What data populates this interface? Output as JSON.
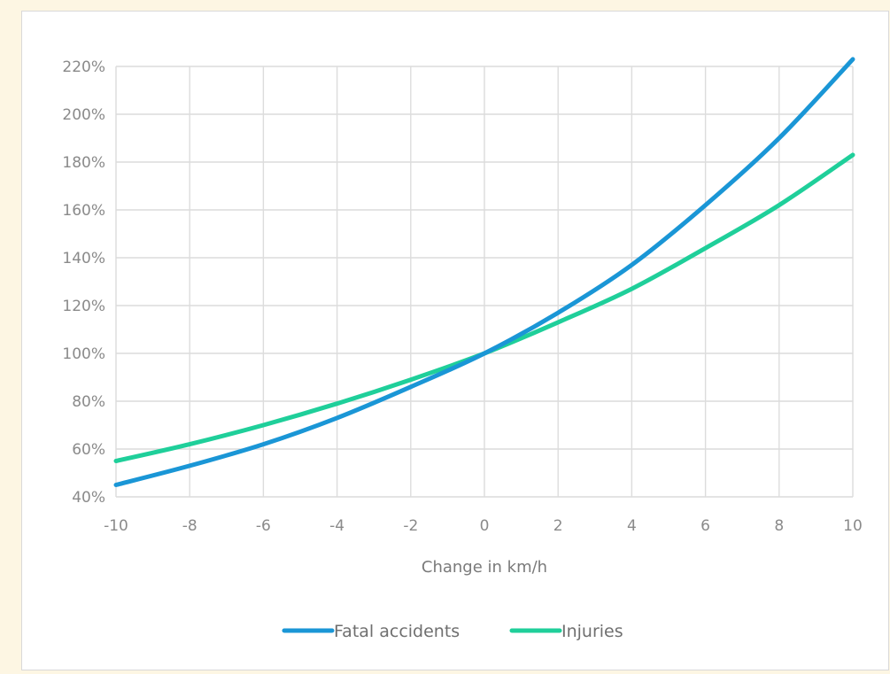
{
  "chart_data": {
    "type": "line",
    "title": "",
    "xlabel": "Change in km/h",
    "ylabel": "",
    "x": [
      -10,
      -8,
      -6,
      -4,
      -2,
      0,
      2,
      4,
      6,
      8,
      10
    ],
    "xlim": [
      -10,
      10
    ],
    "ylim": [
      40,
      220
    ],
    "x_ticks": [
      "-10",
      "-8",
      "-6",
      "-4",
      "-2",
      "0",
      "2",
      "4",
      "6",
      "8",
      "10"
    ],
    "y_ticks": [
      "40%",
      "60%",
      "80%",
      "100%",
      "120%",
      "140%",
      "160%",
      "180%",
      "200%",
      "220%"
    ],
    "y_tick_values": [
      40,
      60,
      80,
      100,
      120,
      140,
      160,
      180,
      200,
      220
    ],
    "grid": true,
    "legend_position": "bottom",
    "series": [
      {
        "name": "Fatal accidents",
        "color": "#1a96d6",
        "values": [
          45,
          53,
          62,
          73,
          86,
          100,
          117,
          137,
          162,
          190,
          223
        ]
      },
      {
        "name": "Injuries",
        "color": "#1fcf9a",
        "values": [
          55,
          62,
          70,
          79,
          89,
          100,
          113,
          127,
          144,
          162,
          183
        ]
      }
    ]
  }
}
